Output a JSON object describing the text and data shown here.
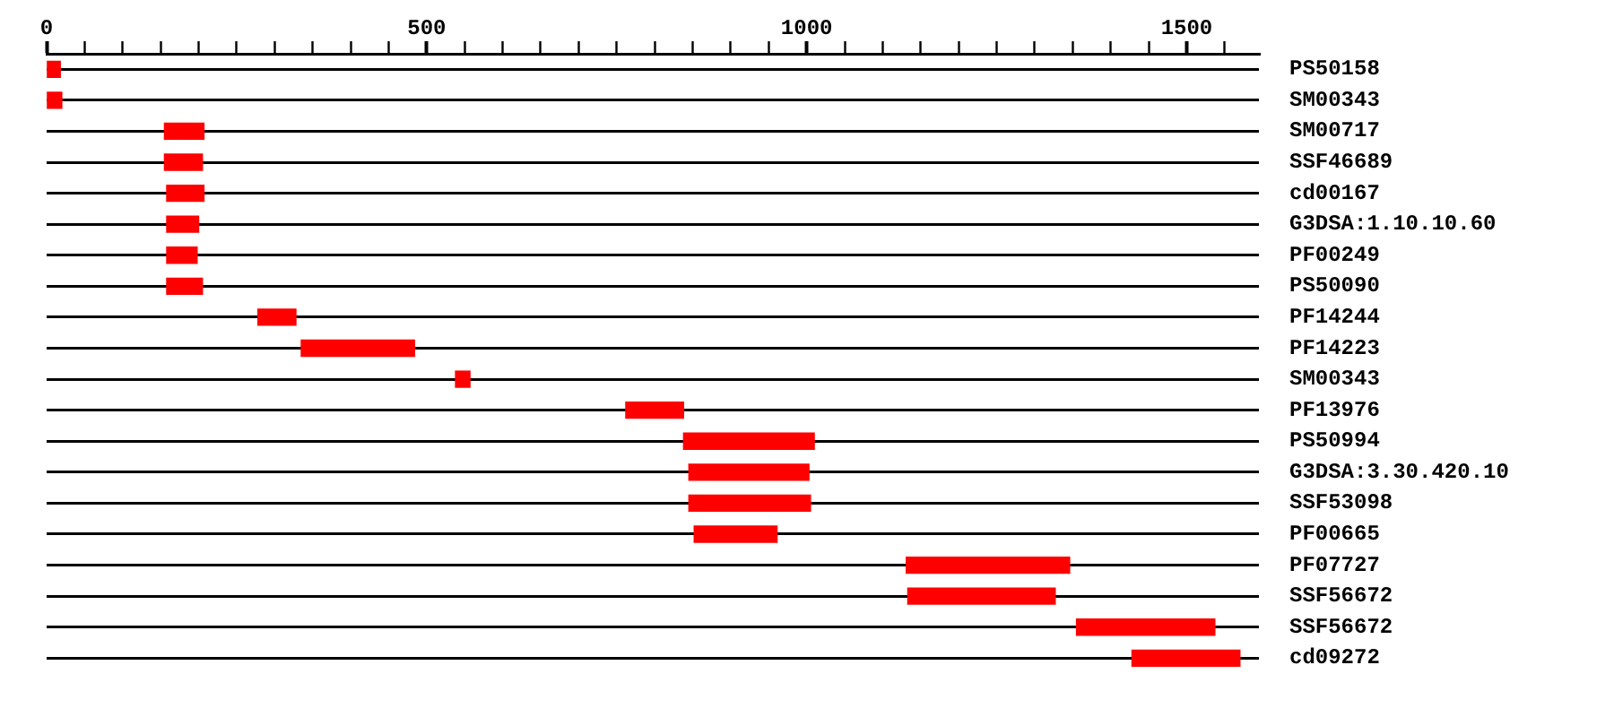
{
  "chart_data": {
    "type": "bar",
    "orientation": "horizontal",
    "categories": [
      "PS50158",
      "SM00343",
      "SM00717",
      "SSF46689",
      "cd00167",
      "G3DSA:1.10.10.60",
      "PF00249",
      "PS50090",
      "PF14244",
      "PF14223",
      "SM00343",
      "PF13976",
      "PS50994",
      "G3DSA:3.30.420.10",
      "SSF53098",
      "PF00665",
      "PF07727",
      "SSF56672",
      "SSF56672",
      "cd09272"
    ],
    "base": [
      1,
      1,
      155,
      155,
      158,
      158,
      158,
      158,
      278,
      335,
      538,
      762,
      838,
      845,
      845,
      852,
      1131,
      1133,
      1355,
      1428
    ],
    "values": [
      17,
      19,
      52,
      50,
      49,
      42,
      40,
      47,
      50,
      149,
      19,
      76,
      172,
      158,
      160,
      109,
      215,
      194,
      182,
      142
    ],
    "color": "#ff0000",
    "xlim": [
      0,
      1595
    ],
    "xticks": [
      0,
      {
        "value": 50,
        "label": null
      },
      {
        "value": 100,
        "label": null
      },
      {
        "value": 150,
        "label": null
      },
      {
        "value": 200,
        "label": null
      },
      {
        "value": 250,
        "label": null
      },
      {
        "value": 300,
        "label": null
      },
      {
        "value": 350,
        "label": null
      },
      {
        "value": 400,
        "label": null
      },
      {
        "value": 450,
        "label": null
      },
      500,
      {
        "value": 550,
        "label": null
      },
      {
        "value": 600,
        "label": null
      },
      {
        "value": 650,
        "label": null
      },
      {
        "value": 700,
        "label": null
      },
      {
        "value": 750,
        "label": null
      },
      {
        "value": 800,
        "label": null
      },
      {
        "value": 850,
        "label": null
      },
      {
        "value": 900,
        "label": null
      },
      {
        "value": 950,
        "label": null
      },
      1000,
      {
        "value": 1050,
        "label": null
      },
      {
        "value": 1100,
        "label": null
      },
      {
        "value": 1150,
        "label": null
      },
      {
        "value": 1200,
        "label": null
      },
      {
        "value": 1250,
        "label": null
      },
      {
        "value": 1300,
        "label": null
      },
      {
        "value": 1350,
        "label": null
      },
      {
        "value": 1400,
        "label": null
      },
      {
        "value": 1450,
        "label": null
      },
      1500,
      {
        "value": 1550,
        "label": null
      }
    ],
    "grid": "y"
  }
}
